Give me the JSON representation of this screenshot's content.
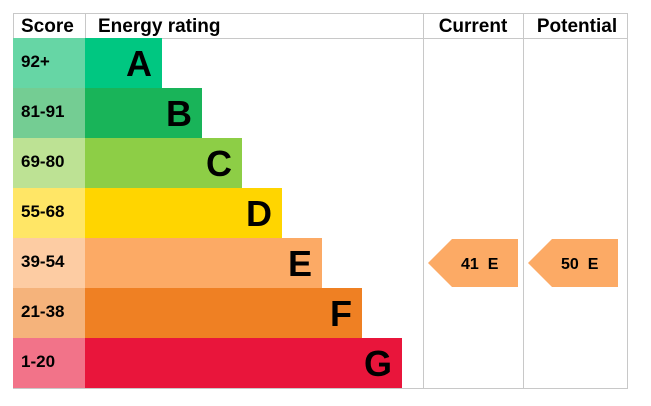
{
  "chart_data": {
    "type": "table",
    "headers": {
      "score": "Score",
      "rating": "Energy rating",
      "current": "Current",
      "potential": "Potential"
    },
    "bands": [
      {
        "score": "92+",
        "letter": "A",
        "bar_color": "#00c781",
        "score_color": "#66d6a5"
      },
      {
        "score": "81-91",
        "letter": "B",
        "bar_color": "#19b459",
        "score_color": "#74cd93"
      },
      {
        "score": "69-80",
        "letter": "C",
        "bar_color": "#8dce46",
        "score_color": "#bde294"
      },
      {
        "score": "55-68",
        "letter": "D",
        "bar_color": "#ffd500",
        "score_color": "#ffe666"
      },
      {
        "score": "39-54",
        "letter": "E",
        "bar_color": "#fcaa65",
        "score_color": "#fdcca3"
      },
      {
        "score": "21-38",
        "letter": "F",
        "bar_color": "#ef8023",
        "score_color": "#f5b37b"
      },
      {
        "score": "1-20",
        "letter": "G",
        "bar_color": "#e9153b",
        "score_color": "#f27389"
      }
    ],
    "current": {
      "value": 41,
      "band": "E",
      "label": "41  E",
      "color": "#fcaa65"
    },
    "potential": {
      "value": 50,
      "band": "E",
      "label": "50  E",
      "color": "#fcaa65"
    }
  }
}
